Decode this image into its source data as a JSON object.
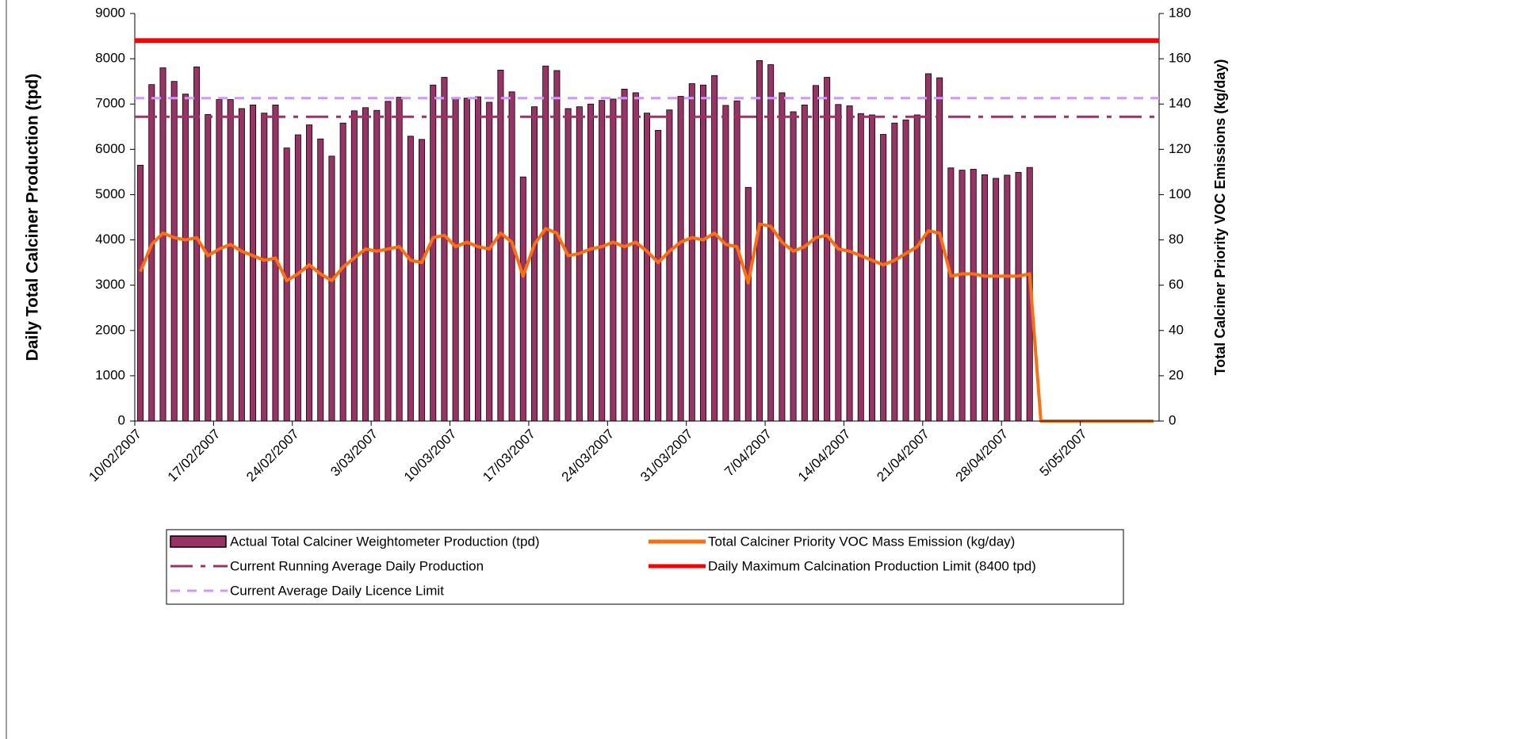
{
  "chart_data": {
    "type": "bar-line",
    "y_label": "Daily Total Calciner Production (tpd)",
    "y2_label": "Total Calciner Priority VOC Emissions (kg/day)",
    "categories": [
      "10/02/2007",
      null,
      null,
      null,
      null,
      null,
      null,
      "17/02/2007",
      null,
      null,
      null,
      null,
      null,
      null,
      "24/02/2007",
      null,
      null,
      null,
      null,
      null,
      null,
      "3/03/2007",
      null,
      null,
      null,
      null,
      null,
      null,
      "10/03/2007",
      null,
      null,
      null,
      null,
      null,
      null,
      "17/03/2007",
      null,
      null,
      null,
      null,
      null,
      null,
      "24/03/2007",
      null,
      null,
      null,
      null,
      null,
      null,
      "31/03/2007",
      null,
      null,
      null,
      null,
      null,
      null,
      "7/04/2007",
      null,
      null,
      null,
      null,
      null,
      null,
      "14/04/2007",
      null,
      null,
      null,
      null,
      null,
      null,
      "21/04/2007",
      null,
      null,
      null,
      null,
      null,
      null,
      "28/04/2007",
      null,
      null,
      null,
      null,
      null,
      null,
      "5/05/2007",
      null,
      null,
      null,
      null,
      null,
      null
    ],
    "series": [
      {
        "name": "Actual Total Calciner Weightometer Production (tpd)",
        "type": "bar",
        "color": "#993366",
        "values": [
          5650,
          7430,
          7800,
          7500,
          7220,
          7820,
          6770,
          7100,
          7100,
          6900,
          6980,
          6800,
          6980,
          6030,
          6320,
          6540,
          6230,
          5850,
          6580,
          6850,
          6920,
          6860,
          7060,
          7150,
          6290,
          6220,
          7420,
          7590,
          7140,
          7130,
          7160,
          7040,
          7750,
          7270,
          5390,
          6940,
          7840,
          7740,
          6900,
          6940,
          7000,
          7080,
          7110,
          7330,
          7250,
          6800,
          6420,
          6870,
          7170,
          7450,
          7420,
          7630,
          6970,
          7070,
          5160,
          7960,
          7870,
          7250,
          6830,
          6980,
          7410,
          7590,
          6990,
          6960,
          6790,
          6760,
          6330,
          6580,
          6650,
          6760,
          7670,
          7580,
          5590,
          5540,
          5560,
          5440,
          5360,
          5430,
          5490,
          5600,
          null,
          null,
          null,
          null,
          null,
          null,
          null,
          null,
          null,
          null,
          null
        ]
      },
      {
        "name": "Total Calciner Priority VOC Mass Emission (kg/day)",
        "type": "line",
        "color": "#FF6D0D",
        "axis": "y2",
        "values": [
          66,
          78,
          83,
          81,
          80,
          81,
          73,
          76,
          78,
          75,
          73,
          71,
          72,
          62,
          65,
          69,
          65,
          62,
          68,
          72,
          76,
          75,
          76,
          77,
          71,
          70,
          81,
          82,
          77,
          79,
          77,
          76,
          83,
          79,
          64,
          78,
          85,
          83,
          73,
          74,
          76,
          77,
          79,
          77,
          79,
          75,
          70,
          75,
          79,
          81,
          80,
          83,
          78,
          77,
          61,
          87,
          86,
          79,
          75,
          77,
          81,
          82,
          76,
          75,
          73,
          71,
          69,
          71,
          74,
          77,
          84,
          83,
          64,
          65,
          65,
          64,
          64,
          64,
          64,
          65,
          0,
          0,
          0,
          0,
          0,
          0,
          0,
          0,
          0,
          0,
          0
        ]
      }
    ],
    "reference_lines": [
      {
        "name": "Current Running Average Daily Production",
        "value": 6720,
        "color": "#993366",
        "style": "dash-dot"
      },
      {
        "name": "Daily Maximum Calcination Production Limit (8400 tpd)",
        "value": 8400,
        "color": "#FF0000",
        "style": "solid"
      },
      {
        "name": "Current Average Daily Licence Limit",
        "value": 7130,
        "color": "#CC99FF",
        "style": "dash"
      }
    ],
    "ylim": [
      0,
      9000
    ],
    "yticks": [
      0,
      1000,
      2000,
      3000,
      4000,
      5000,
      6000,
      7000,
      8000,
      9000
    ],
    "y2lim": [
      0,
      180
    ],
    "y2ticks": [
      0,
      20,
      40,
      60,
      80,
      100,
      120,
      140,
      160,
      180
    ],
    "legend": "bottom"
  }
}
